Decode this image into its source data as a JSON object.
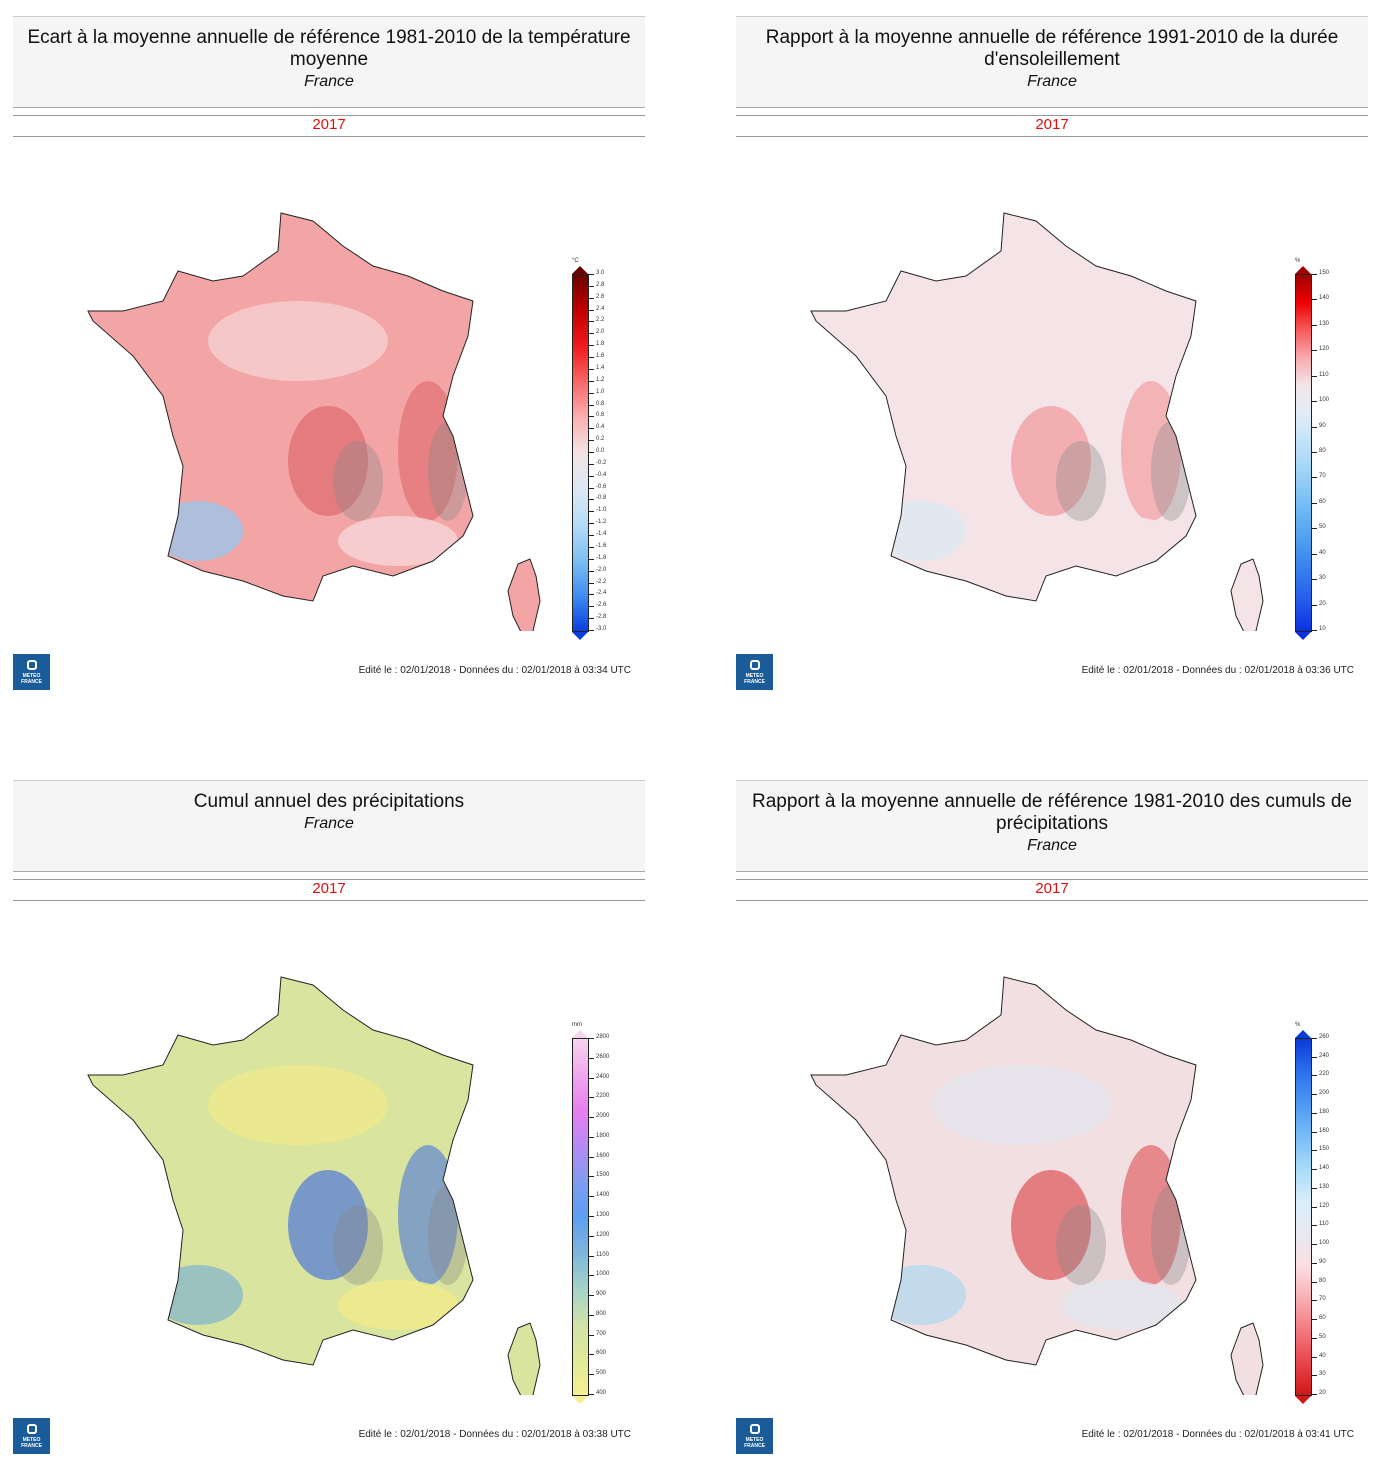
{
  "panels": [
    {
      "title": "Ecart à la moyenne annuelle de référence 1981-2010 de la température moyenne",
      "subtitle": "France",
      "year": "2017",
      "legend": {
        "unit": "°C",
        "ticks": [
          "3.0",
          "2.8",
          "2.6",
          "2.4",
          "2.2",
          "2.0",
          "1.8",
          "1.6",
          "1.4",
          "1.2",
          "1.0",
          "0.8",
          "0.6",
          "0.4",
          "0.2",
          "0.0",
          "-0.2",
          "-0.4",
          "-0.6",
          "-0.8",
          "-1.0",
          "-1.2",
          "-1.4",
          "-1.6",
          "-1.8",
          "-2.0",
          "-2.2",
          "-2.4",
          "-2.6",
          "-2.8",
          "-3.0"
        ],
        "colors": [
          "#6b0000",
          "#c00000",
          "#f01a1a",
          "#f76868",
          "#fbb0b0",
          "#f3e3e6",
          "#dde8f4",
          "#b6dcf7",
          "#7ec0f2",
          "#3f8ef0",
          "#0a3ee0"
        ]
      },
      "map_colors": {
        "base": "#f3a5a6",
        "dark": "#e07074",
        "light": "#f7d6d8",
        "blue": "#9cc6ea"
      },
      "footer": "Edité le : 02/01/2018 - Données du : 02/01/2018 à 03:34 UTC"
    },
    {
      "title": "Rapport à la moyenne annuelle de référence 1991-2010 de la durée d'ensoleillement",
      "subtitle": "France",
      "year": "2017",
      "legend": {
        "unit": "%",
        "ticks": [
          "150",
          "140",
          "130",
          "120",
          "110",
          "100",
          "90",
          "80",
          "70",
          "60",
          "50",
          "40",
          "30",
          "20",
          "10"
        ],
        "colors": [
          "#a00000",
          "#ee0000",
          "#f55a5a",
          "#f8a8ac",
          "#f4e4e7",
          "#e2ecf5",
          "#c6e4f8",
          "#a5d6f7",
          "#82c4f5",
          "#5fb0f2",
          "#4696ee",
          "#3378ee",
          "#2158ea",
          "#0c30e0"
        ]
      },
      "map_colors": {
        "base": "#f5e4e7",
        "dark": "#f2a0a4",
        "light": "#f5e4e7",
        "blue": "#dce8f3"
      },
      "footer": "Edité le : 02/01/2018 - Données du : 02/01/2018 à 03:36 UTC"
    },
    {
      "title": "Cumul annuel des précipitations",
      "subtitle": "France",
      "year": "2017",
      "legend": {
        "unit": "mm",
        "ticks": [
          "2800",
          "2600",
          "2400",
          "2200",
          "2000",
          "1800",
          "1600",
          "1500",
          "1400",
          "1300",
          "1200",
          "1100",
          "1000",
          "900",
          "800",
          "700",
          "600",
          "500",
          "400"
        ],
        "colors": [
          "#f6d4ee",
          "#f0a8ee",
          "#e97ef0",
          "#b68af5",
          "#7f9cf2",
          "#5c9ff0",
          "#7eb6dc",
          "#a4d2c8",
          "#cfe2a8",
          "#e0ea98",
          "#f4ef92"
        ]
      },
      "map_colors": {
        "base": "#d9e59e",
        "dark": "#5f86d2",
        "light": "#f1ea8a",
        "blue": "#89b9c8"
      },
      "footer": "Edité le : 02/01/2018 - Données du : 02/01/2018 à 03:38 UTC"
    },
    {
      "title": "Rapport à la moyenne annuelle de référence 1981-2010 des cumuls de précipitations",
      "subtitle": "France",
      "year": "2017",
      "legend": {
        "unit": "%",
        "ticks": [
          "260",
          "240",
          "220",
          "200",
          "180",
          "160",
          "150",
          "140",
          "130",
          "120",
          "110",
          "100",
          "90",
          "80",
          "70",
          "60",
          "50",
          "40",
          "30",
          "20"
        ],
        "colors": [
          "#0a3ad8",
          "#2b70ee",
          "#4c99f2",
          "#78bcf6",
          "#a8daf8",
          "#d8eefb",
          "#e8e8f0",
          "#fbe0e2",
          "#f8b0b4",
          "#f27a80",
          "#e8454c",
          "#d01818"
        ]
      },
      "map_colors": {
        "base": "#f1dfe2",
        "dark": "#e06468",
        "light": "#e3e6ef",
        "blue": "#b8d8ee"
      },
      "footer": "Edité le : 02/01/2018 - Données du : 02/01/2018 à 03:41 UTC"
    }
  ],
  "logo_text": "METEO FRANCE"
}
